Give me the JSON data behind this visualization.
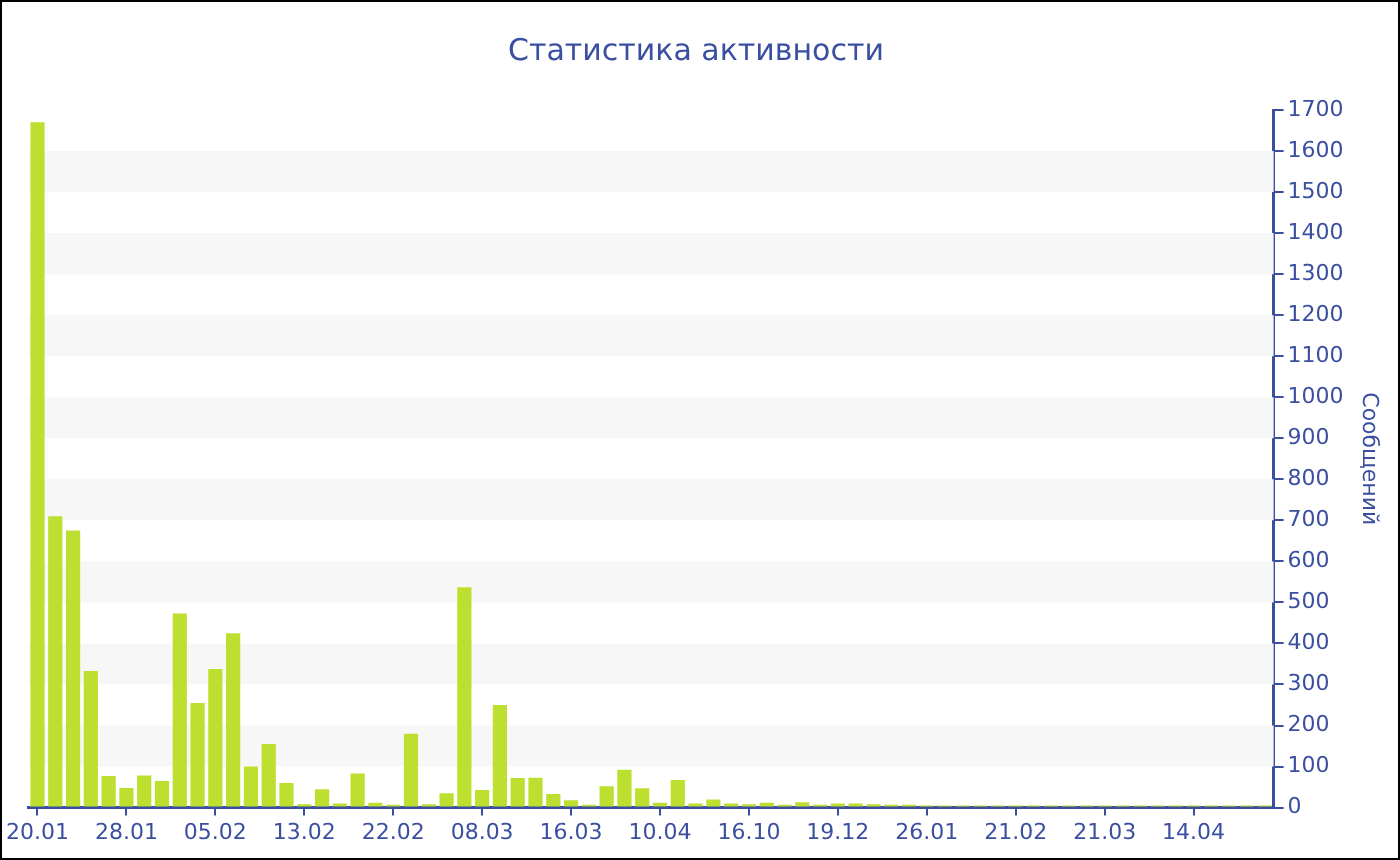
{
  "chart_data": {
    "type": "bar",
    "title": "Статистика активности",
    "ylabel": "Сообщений",
    "categories": [
      "20.01",
      null,
      null,
      null,
      null,
      "28.01",
      null,
      null,
      null,
      null,
      "05.02",
      null,
      null,
      null,
      null,
      "13.02",
      null,
      null,
      null,
      null,
      "22.02",
      null,
      null,
      null,
      null,
      "08.03",
      null,
      null,
      null,
      null,
      "16.03",
      null,
      null,
      null,
      null,
      "10.04",
      null,
      null,
      null,
      null,
      "16.10",
      null,
      null,
      null,
      null,
      "19.12",
      null,
      null,
      null,
      null,
      "26.01",
      null,
      null,
      null,
      null,
      "21.02",
      null,
      null,
      null,
      null,
      "21.03",
      null,
      null,
      null,
      null,
      "14.04",
      null,
      null,
      null,
      null
    ],
    "values": [
      1670,
      710,
      675,
      333,
      77,
      48,
      78,
      65,
      473,
      255,
      338,
      425,
      100,
      155,
      60,
      8,
      45,
      10,
      83,
      12,
      7,
      180,
      8,
      35,
      537,
      43,
      250,
      72,
      73,
      33,
      18,
      7,
      52,
      92,
      47,
      12,
      67,
      10,
      20,
      10,
      8,
      12,
      7,
      13,
      7,
      10,
      10,
      8,
      7,
      7,
      5,
      5,
      5,
      5,
      5,
      5,
      5,
      5,
      5,
      5,
      5,
      5,
      5,
      5,
      5,
      5,
      5,
      5,
      5,
      5
    ],
    "color": "#bde030",
    "ylim": [
      0,
      1700
    ],
    "yticks": [
      0,
      100,
      200,
      300,
      400,
      500,
      600,
      700,
      800,
      900,
      1000,
      1100,
      1200,
      1300,
      1400,
      1500,
      1600,
      1700
    ],
    "legend": false
  }
}
